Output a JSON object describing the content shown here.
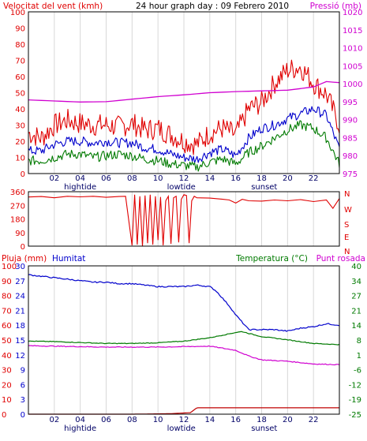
{
  "chart_data": [
    {
      "type": "line",
      "title": "24 hour graph day : 09 Febrero 2010",
      "left_label": "Velocitat del vent (kmh)",
      "right_label": "Pressió (mb)",
      "left_ticks": [
        "0",
        "10",
        "20",
        "30",
        "40",
        "50",
        "60",
        "70",
        "80",
        "90",
        "100"
      ],
      "right_ticks": [
        "975",
        "980",
        "985",
        "990",
        "995",
        "1000",
        "1005",
        "1010",
        "1015",
        "1020"
      ],
      "ylim_left": [
        0,
        100
      ],
      "ylim_right": [
        975,
        1020
      ],
      "x_ticks": [
        "02",
        "04",
        "06",
        "08",
        "10",
        "12",
        "14",
        "16",
        "18",
        "20",
        "22"
      ],
      "x_hours": [
        2,
        4,
        6,
        8,
        10,
        12,
        14,
        16,
        18,
        20,
        22
      ],
      "events": [
        {
          "label": "hightide",
          "hour": 4
        },
        {
          "label": "lowtide",
          "hour": 11.8
        },
        {
          "label": "sunset",
          "hour": 18.2
        }
      ],
      "colors": {
        "gust": "#e00000",
        "wind": "#0000cc",
        "wind_min": "#007a00",
        "pressure": "#d000d0"
      },
      "series": [
        {
          "key": "gust",
          "axis": "left",
          "x": [
            0,
            1,
            2,
            3,
            4,
            5,
            6,
            7,
            8,
            9,
            10,
            11,
            12,
            13,
            14,
            15,
            16,
            17,
            18,
            19,
            20,
            21,
            22,
            23,
            24
          ],
          "values": [
            25,
            22,
            30,
            33,
            31,
            30,
            30,
            29,
            31,
            27,
            28,
            24,
            20,
            18,
            25,
            28,
            24,
            40,
            44,
            56,
            64,
            66,
            56,
            49,
            30
          ]
        },
        {
          "key": "wind",
          "axis": "left",
          "x": [
            0,
            1,
            2,
            3,
            4,
            5,
            6,
            7,
            8,
            9,
            10,
            11,
            12,
            13,
            14,
            15,
            16,
            17,
            18,
            19,
            20,
            21,
            22,
            23,
            24
          ],
          "values": [
            14,
            14,
            18,
            20,
            20,
            19,
            20,
            19,
            19,
            16,
            15,
            12,
            10,
            9,
            13,
            15,
            11,
            22,
            28,
            30,
            34,
            37,
            40,
            36,
            15
          ]
        },
        {
          "key": "wind_min",
          "axis": "left",
          "x": [
            0,
            1,
            2,
            3,
            4,
            5,
            6,
            7,
            8,
            9,
            10,
            11,
            12,
            13,
            14,
            15,
            16,
            17,
            18,
            19,
            20,
            21,
            22,
            23,
            24
          ],
          "values": [
            8,
            8,
            10,
            12,
            12,
            10,
            11,
            12,
            11,
            9,
            8,
            6,
            5,
            4,
            7,
            9,
            6,
            13,
            17,
            22,
            27,
            30,
            28,
            22,
            6
          ]
        },
        {
          "key": "pressure",
          "axis": "right",
          "x": [
            0,
            2,
            4,
            6,
            8,
            10,
            12,
            14,
            16,
            18,
            20,
            22,
            23,
            24
          ],
          "values": [
            995.5,
            995.2,
            994.9,
            995.0,
            995.7,
            996.4,
            996.9,
            997.5,
            997.8,
            998.0,
            998.2,
            999.1,
            1000.6,
            1000.3
          ]
        }
      ]
    },
    {
      "type": "scatter",
      "left_ticks": [
        "0",
        "90",
        "180",
        "270",
        "360"
      ],
      "ylim": [
        0,
        360
      ],
      "right_ticks": [
        "N",
        "W",
        "S",
        "E",
        "N"
      ],
      "x_ticks": [
        "02",
        "04",
        "06",
        "08",
        "10",
        "12",
        "14",
        "16",
        "18",
        "20",
        "22"
      ],
      "colors": {
        "direction": "#e00000"
      },
      "series": [
        {
          "key": "direction",
          "x": [
            0,
            1,
            2,
            3,
            4,
            5,
            6,
            7,
            7.5,
            8,
            8.2,
            8.4,
            8.6,
            8.8,
            9,
            9.2,
            9.4,
            9.6,
            9.8,
            10,
            10.2,
            10.4,
            10.6,
            10.8,
            11,
            11.2,
            11.4,
            11.6,
            11.8,
            12,
            12.2,
            12.4,
            12.6,
            12.8,
            13,
            14,
            15,
            15.5,
            16,
            16.5,
            17,
            18,
            19,
            20,
            21,
            22,
            23,
            23.5,
            24
          ],
          "values": [
            325,
            328,
            320,
            330,
            326,
            330,
            323,
            328,
            330,
            5,
            340,
            10,
            330,
            0,
            335,
            20,
            340,
            10,
            330,
            40,
            325,
            5,
            300,
            330,
            15,
            320,
            330,
            25,
            310,
            340,
            335,
            20,
            300,
            330,
            320,
            318,
            310,
            305,
            285,
            310,
            300,
            298,
            305,
            300,
            308,
            295,
            305,
            250,
            315
          ]
        }
      ]
    },
    {
      "type": "line",
      "left_label_1": "Pluja (mm)",
      "left_label_2": "Humitat",
      "right_label_1": "Temperatura (°C)",
      "right_label_2": "Punt rosada",
      "left_ticks": [
        "0",
        "10",
        "20",
        "30",
        "40",
        "50",
        "60",
        "70",
        "80",
        "90",
        "100"
      ],
      "rain_ticks": [
        "0",
        "3",
        "6",
        "9",
        "12",
        "15",
        "18",
        "21",
        "24",
        "27",
        "30"
      ],
      "right_ticks": [
        "-25",
        "-19",
        "-12",
        "-6",
        "1",
        "8",
        "14",
        "21",
        "27",
        "34",
        "40"
      ],
      "ylim_humidity": [
        0,
        100
      ],
      "ylim_rain": [
        0,
        30
      ],
      "ylim_temp": [
        -25,
        40
      ],
      "x_ticks": [
        "02",
        "04",
        "06",
        "08",
        "10",
        "12",
        "14",
        "16",
        "18",
        "20",
        "22"
      ],
      "events": [
        {
          "label": "hightide",
          "hour": 4
        },
        {
          "label": "lowtide",
          "hour": 11.8
        },
        {
          "label": "sunset",
          "hour": 18.2
        }
      ],
      "colors": {
        "humidity": "#0000cc",
        "temperature": "#007a00",
        "dewpoint": "#d000d0",
        "rain": "#c00000"
      },
      "series": [
        {
          "key": "humidity",
          "axis": "humidity",
          "x": [
            0,
            1,
            2,
            3,
            4,
            5,
            6,
            7,
            8,
            9,
            10,
            11,
            12,
            13,
            14,
            14.5,
            15,
            15.5,
            16,
            16.5,
            17,
            18,
            19,
            20,
            21,
            22,
            23,
            24
          ],
          "values": [
            94,
            93,
            92,
            91,
            90,
            89,
            89,
            88,
            88,
            87,
            86,
            86,
            86,
            87,
            86,
            83,
            78,
            73,
            67,
            62,
            57,
            57,
            57,
            56,
            58,
            59,
            61,
            60
          ]
        },
        {
          "key": "temperature",
          "axis": "temp",
          "x": [
            0,
            2,
            4,
            6,
            8,
            10,
            12,
            14,
            16,
            16.5,
            17,
            18,
            20,
            22,
            24
          ],
          "values": [
            7,
            6.8,
            6.4,
            6.0,
            6.0,
            6.3,
            7.0,
            8.5,
            10.8,
            11.2,
            10.4,
            9.0,
            7.6,
            6.0,
            5.5
          ]
        },
        {
          "key": "dewpoint",
          "axis": "temp",
          "x": [
            0,
            2,
            4,
            6,
            8,
            10,
            12,
            14,
            16,
            17,
            18,
            20,
            22,
            24
          ],
          "values": [
            5,
            4.8,
            4.6,
            4.4,
            4.4,
            4.4,
            4.6,
            4.8,
            3.0,
            0.5,
            -1.2,
            -1.8,
            -3.0,
            -3.3
          ]
        },
        {
          "key": "rain",
          "axis": "rain",
          "x": [
            0,
            8,
            11,
            12.5,
            13,
            13.5,
            16,
            20,
            24
          ],
          "values": [
            0,
            0,
            0.1,
            0.3,
            1.3,
            1.3,
            1.3,
            1.3,
            1.3
          ]
        }
      ]
    }
  ]
}
